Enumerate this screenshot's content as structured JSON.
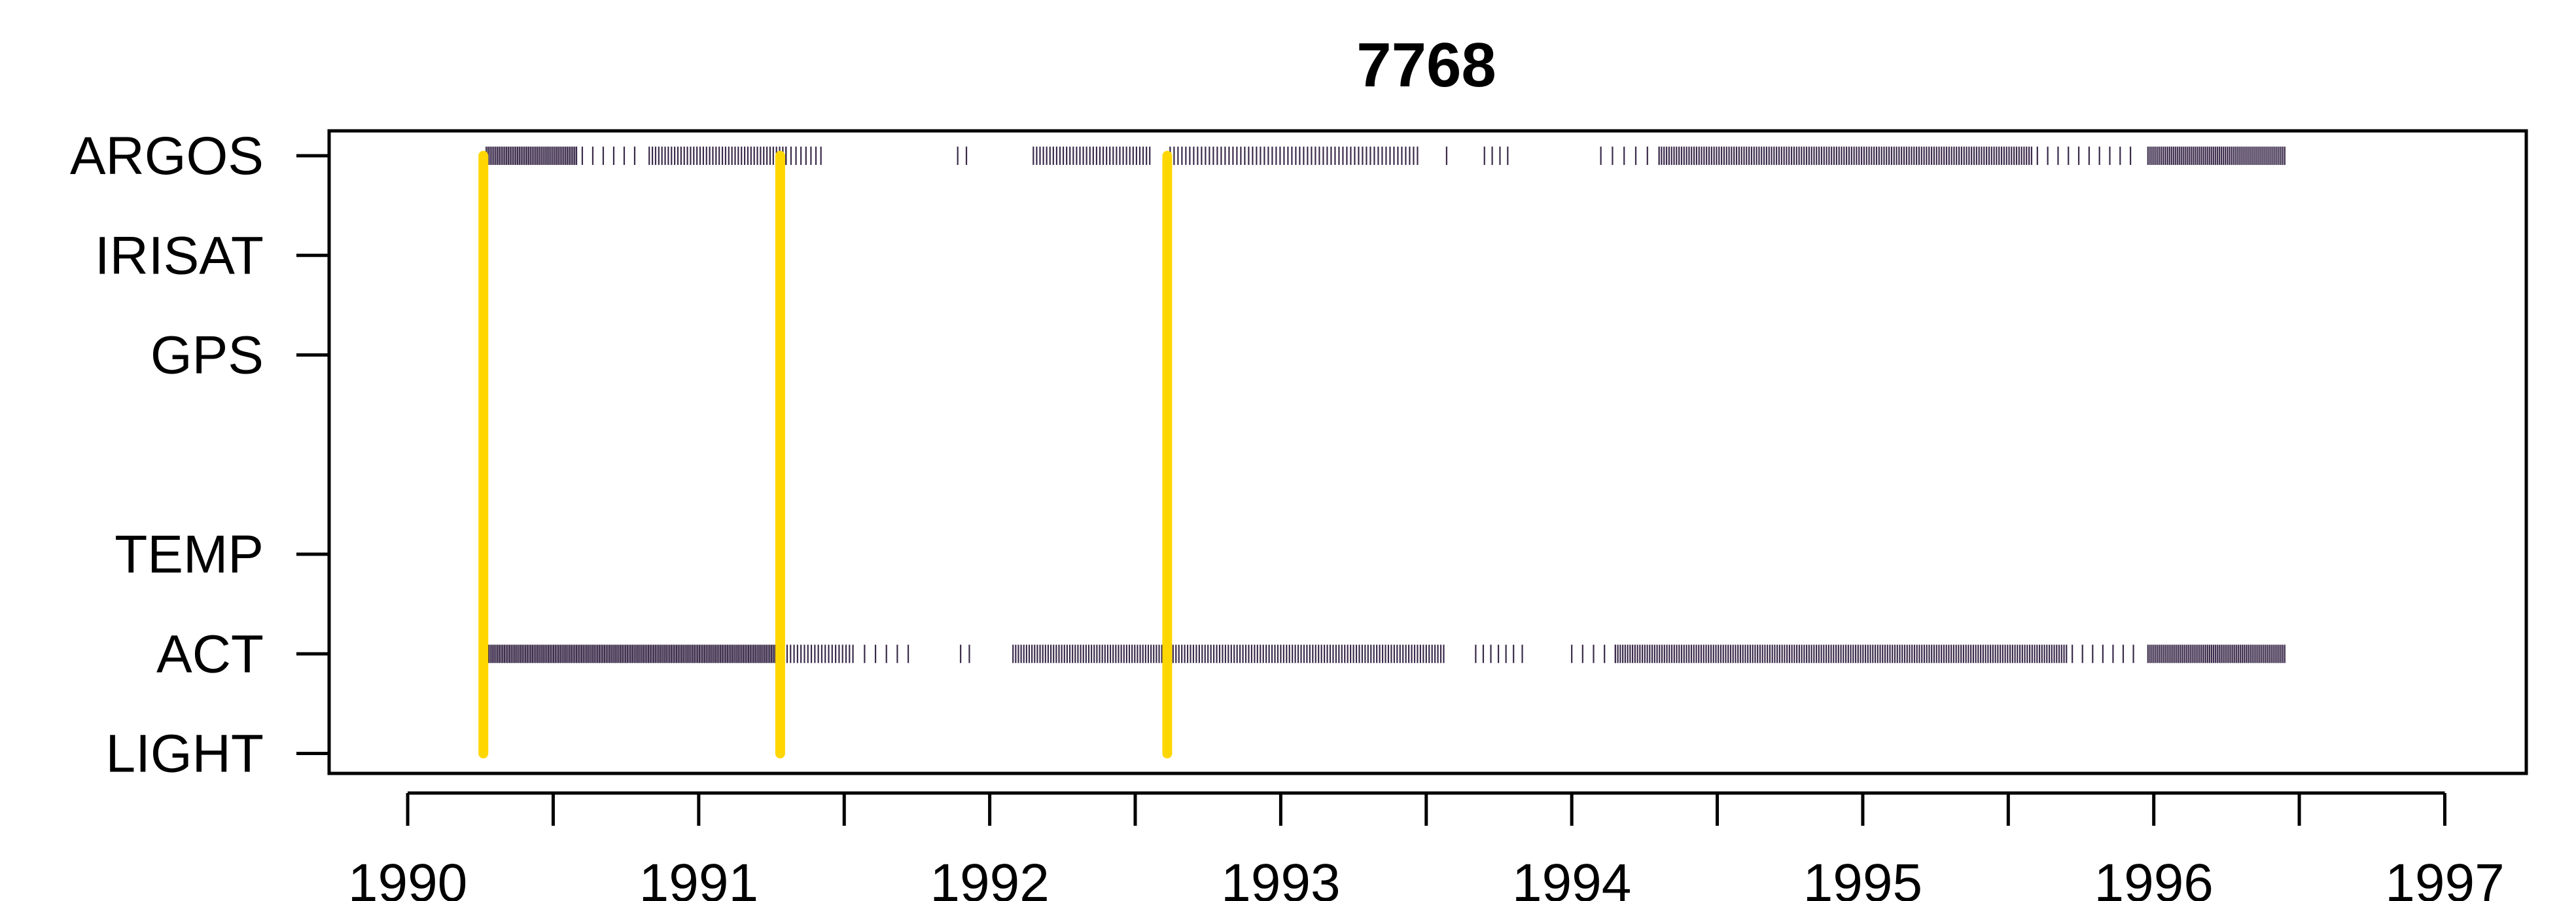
{
  "chart_data": {
    "type": "scatter",
    "title": "7768",
    "xlim": [
      1989.73,
      1997.28
    ],
    "x_ticks": [
      1990,
      1991,
      1992,
      1993,
      1994,
      1995,
      1996,
      1997
    ],
    "x_tick_labels": [
      "1990",
      "1991",
      "1992",
      "1993",
      "1994",
      "1995",
      "1996",
      "1997"
    ],
    "x_minor_ticks": [
      1990.5,
      1991.5,
      1992.5,
      1993.5,
      1994.5,
      1995.5,
      1996.5
    ],
    "y_categories": [
      "ARGOS",
      "IRISAT",
      "GPS",
      "TEMP",
      "ACT",
      "LIGHT"
    ],
    "y_positions": {
      "ARGOS": 6,
      "IRISAT": 5,
      "GPS": 4,
      "TEMP": 2,
      "ACT": 1,
      "LIGHT": 0
    },
    "ylim": [
      -0.2,
      6.25
    ],
    "deployments": {
      "color": "#FFD700",
      "x": [
        1990.26,
        1991.28,
        1992.61
      ],
      "y_from": 0,
      "y_to": [
        6,
        6,
        6
      ]
    },
    "series": [
      {
        "name": "ARGOS",
        "color": "#3a2a4a",
        "segments": [
          {
            "start": 1990.27,
            "end": 1990.58,
            "count": 50
          },
          {
            "start": 1990.6,
            "end": 1990.78,
            "count": 6
          },
          {
            "start": 1990.83,
            "end": 1991.3,
            "count": 44
          },
          {
            "start": 1991.3,
            "end": 1991.42,
            "count": 8
          },
          {
            "start": 1991.89,
            "end": 1991.92,
            "count": 2
          },
          {
            "start": 1992.15,
            "end": 1992.55,
            "count": 36
          },
          {
            "start": 1992.62,
            "end": 1993.47,
            "count": 64
          },
          {
            "start": 1993.57,
            "end": 1993.58,
            "count": 1
          },
          {
            "start": 1993.7,
            "end": 1993.78,
            "count": 4
          },
          {
            "start": 1994.1,
            "end": 1994.3,
            "count": 6
          },
          {
            "start": 1994.3,
            "end": 1995.58,
            "count": 150
          },
          {
            "start": 1995.6,
            "end": 1995.92,
            "count": 10
          },
          {
            "start": 1995.98,
            "end": 1996.45,
            "count": 70
          }
        ]
      },
      {
        "name": "ACT",
        "color": "#3a2a4a",
        "segments": [
          {
            "start": 1990.26,
            "end": 1991.28,
            "count": 170
          },
          {
            "start": 1991.28,
            "end": 1991.53,
            "count": 22
          },
          {
            "start": 1991.57,
            "end": 1991.72,
            "count": 5
          },
          {
            "start": 1991.9,
            "end": 1991.93,
            "count": 2
          },
          {
            "start": 1992.08,
            "end": 1992.61,
            "count": 58
          },
          {
            "start": 1992.61,
            "end": 1993.56,
            "count": 96
          },
          {
            "start": 1993.67,
            "end": 1993.8,
            "count": 6
          },
          {
            "start": 1993.83,
            "end": 1993.84,
            "count": 1
          },
          {
            "start": 1994.0,
            "end": 1994.15,
            "count": 5
          },
          {
            "start": 1994.15,
            "end": 1995.7,
            "count": 185
          },
          {
            "start": 1995.72,
            "end": 1995.93,
            "count": 7
          },
          {
            "start": 1995.98,
            "end": 1996.45,
            "count": 72
          }
        ]
      }
    ]
  }
}
